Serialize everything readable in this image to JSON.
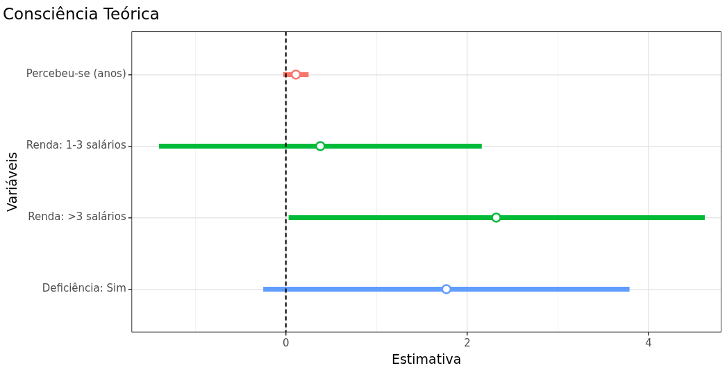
{
  "chart_data": {
    "type": "scatter",
    "orientation": "horizontal",
    "title": "Consciência Teórica",
    "xlabel": "Estimativa",
    "ylabel": "Variáveis",
    "categories": [
      "Percebeu-se (anos)",
      "Renda: 1-3 salários",
      "Renda: >3 salários",
      "Deficiência: Sim"
    ],
    "values": [
      0.11,
      0.38,
      2.32,
      1.77
    ],
    "errors": [
      [
        -0.03,
        0.25
      ],
      [
        -1.4,
        2.16
      ],
      [
        0.03,
        4.62
      ],
      [
        -0.25,
        3.79
      ]
    ],
    "colors": [
      "#f8766d",
      "#00ba38",
      "#00ba38",
      "#619cff"
    ],
    "xlim": [
      -1.7,
      4.8
    ],
    "xticks": [
      {
        "value": -1,
        "label": null
      },
      0,
      {
        "value": 1,
        "label": null
      },
      2,
      {
        "value": 3,
        "label": null
      },
      4
    ],
    "ref_lines": [
      {
        "axis": "x",
        "value": 0,
        "color": "#000000",
        "line_style": "dashed"
      }
    ],
    "grid": true,
    "legend": false,
    "marker": "circle"
  }
}
